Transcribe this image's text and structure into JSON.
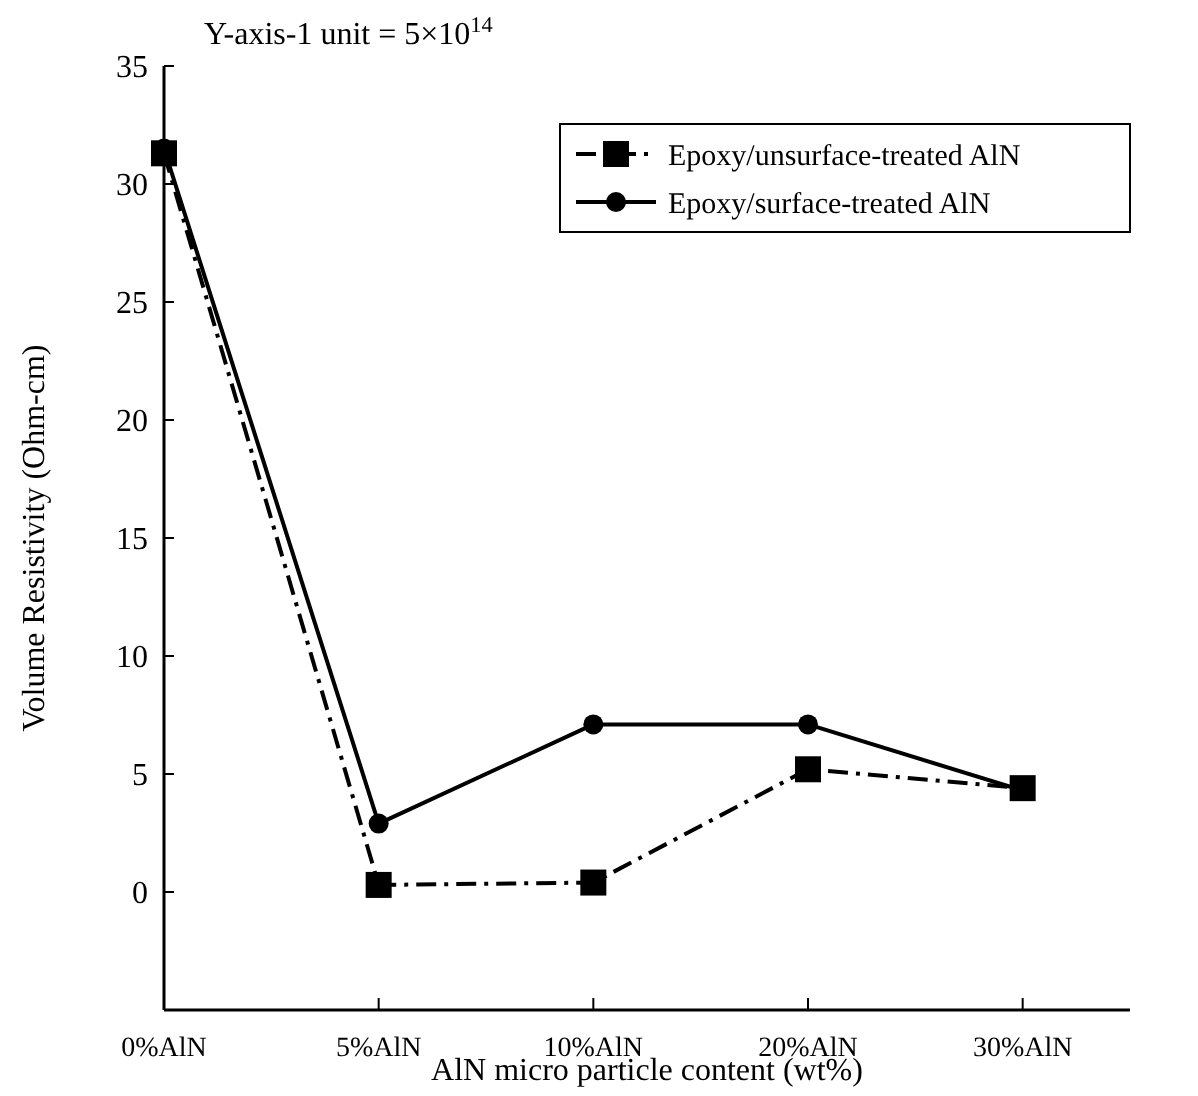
{
  "chart_data": {
    "type": "line",
    "xlabel": "AlN micro particle content (wt%)",
    "ylabel": "Volume Resistivity (Ohm-cm)",
    "annotations": [
      "Y-axis-1 unit = 5×10$^{14}$"
    ],
    "categories": [
      "0%AlN",
      "5%AlN",
      "10%AlN",
      "20%AlN",
      "30%AlN"
    ],
    "series": [
      {
        "name": "Epoxy/unsurface-treated AlN",
        "color": "#000000",
        "marker": "square",
        "line_style": "dashed",
        "values": [
          31.3,
          0.3,
          0.4,
          5.2,
          4.4
        ]
      },
      {
        "name": "Epoxy/surface-treated AlN",
        "color": "#000000",
        "marker": "circle",
        "line_style": "solid",
        "values": [
          31.5,
          2.9,
          7.1,
          7.1,
          4.3
        ]
      }
    ],
    "ylim": [
      -5,
      35
    ],
    "yticks": [
      0,
      5,
      10,
      15,
      20,
      25,
      30,
      35
    ],
    "grid": false,
    "legend": "top right"
  }
}
